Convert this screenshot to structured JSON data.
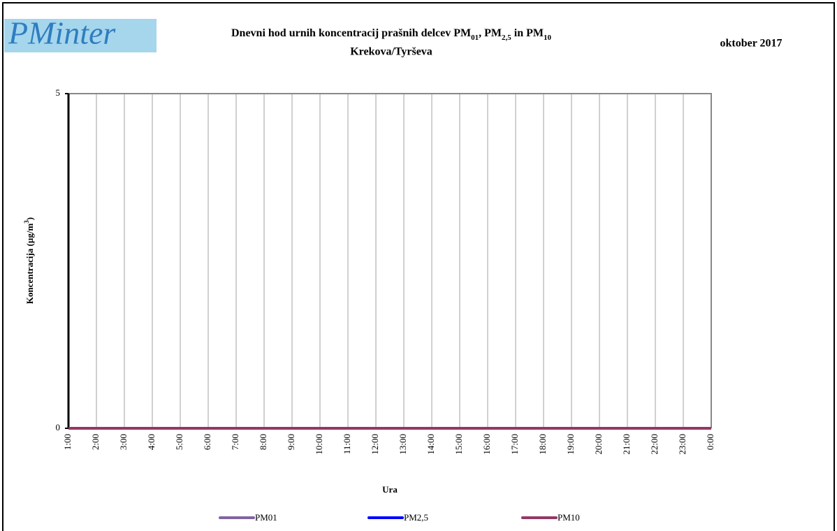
{
  "logo": "PMinter",
  "chart_data": {
    "type": "line",
    "title": [
      "Dnevni hod urnih koncentracij prašnih delcev PM",
      "01",
      ", PM",
      "2,5",
      " in PM",
      "10"
    ],
    "subtitle": "Krekova/Tyrševa",
    "date": "oktober 2017",
    "xlabel": "Ura",
    "ylabel": [
      "Koncentracija (µg/m",
      "3",
      ")"
    ],
    "categories": [
      "1:00",
      "2:00",
      "3:00",
      "4:00",
      "5:00",
      "6:00",
      "7:00",
      "8:00",
      "9:00",
      "10:00",
      "11:00",
      "12:00",
      "13:00",
      "14:00",
      "15:00",
      "16:00",
      "17:00",
      "18:00",
      "19:00",
      "20:00",
      "21:00",
      "22:00",
      "23:00",
      "0:00"
    ],
    "series": [
      {
        "name": "PM01",
        "color": "#8064a2",
        "values": [
          0,
          0,
          0,
          0,
          0,
          0,
          0,
          0,
          0,
          0,
          0,
          0,
          0,
          0,
          0,
          0,
          0,
          0,
          0,
          0,
          0,
          0,
          0,
          0
        ]
      },
      {
        "name": "PM2,5",
        "color": "#0000ff",
        "values": [
          0,
          0,
          0,
          0,
          0,
          0,
          0,
          0,
          0,
          0,
          0,
          0,
          0,
          0,
          0,
          0,
          0,
          0,
          0,
          0,
          0,
          0,
          0,
          0
        ]
      },
      {
        "name": "PM10",
        "color": "#953866",
        "values": [
          0,
          0,
          0,
          0,
          0,
          0,
          0,
          0,
          0,
          0,
          0,
          0,
          0,
          0,
          0,
          0,
          0,
          0,
          0,
          0,
          0,
          0,
          0,
          0
        ]
      }
    ],
    "ylim": [
      0,
      5
    ],
    "yticks": [
      0,
      5
    ],
    "grid": true
  }
}
